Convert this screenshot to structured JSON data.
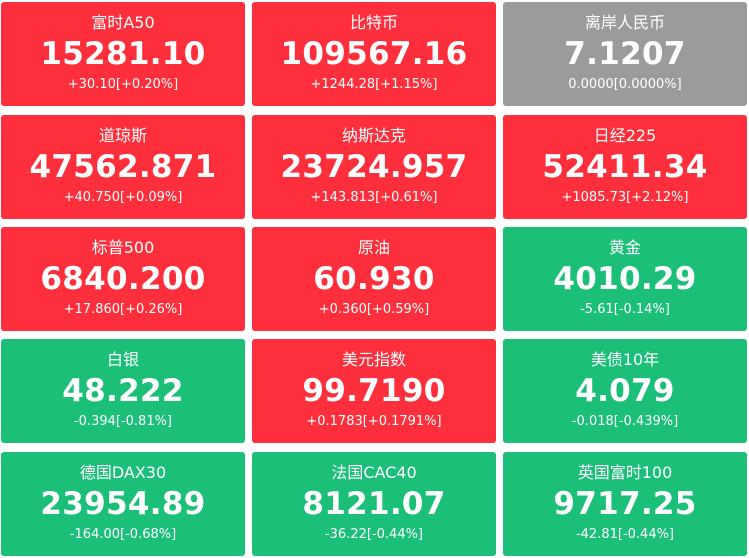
{
  "colors": {
    "up": "#fd2f3c",
    "down": "#1bbf78",
    "flat": "#9b9b9b",
    "text": "#ffffff"
  },
  "tiles": [
    {
      "name": "富时A50",
      "price": "15281.10",
      "change": "+30.10[+0.20%]",
      "trend": "up"
    },
    {
      "name": "比特币",
      "price": "109567.16",
      "change": "+1244.28[+1.15%]",
      "trend": "up"
    },
    {
      "name": "离岸人民币",
      "price": "7.1207",
      "change": "0.0000[0.0000%]",
      "trend": "flat"
    },
    {
      "name": "道琼斯",
      "price": "47562.871",
      "change": "+40.750[+0.09%]",
      "trend": "up"
    },
    {
      "name": "纳斯达克",
      "price": "23724.957",
      "change": "+143.813[+0.61%]",
      "trend": "up"
    },
    {
      "name": "日经225",
      "price": "52411.34",
      "change": "+1085.73[+2.12%]",
      "trend": "up"
    },
    {
      "name": "标普500",
      "price": "6840.200",
      "change": "+17.860[+0.26%]",
      "trend": "up"
    },
    {
      "name": "原油",
      "price": "60.930",
      "change": "+0.360[+0.59%]",
      "trend": "up"
    },
    {
      "name": "黄金",
      "price": "4010.29",
      "change": "-5.61[-0.14%]",
      "trend": "down"
    },
    {
      "name": "白银",
      "price": "48.222",
      "change": "-0.394[-0.81%]",
      "trend": "down"
    },
    {
      "name": "美元指数",
      "price": "99.7190",
      "change": "+0.1783[+0.1791%]",
      "trend": "up"
    },
    {
      "name": "美债10年",
      "price": "4.079",
      "change": "-0.018[-0.439%]",
      "trend": "down"
    },
    {
      "name": "德国DAX30",
      "price": "23954.89",
      "change": "-164.00[-0.68%]",
      "trend": "down"
    },
    {
      "name": "法国CAC40",
      "price": "8121.07",
      "change": "-36.22[-0.44%]",
      "trend": "down"
    },
    {
      "name": "英国富时100",
      "price": "9717.25",
      "change": "-42.81[-0.44%]",
      "trend": "down"
    }
  ]
}
